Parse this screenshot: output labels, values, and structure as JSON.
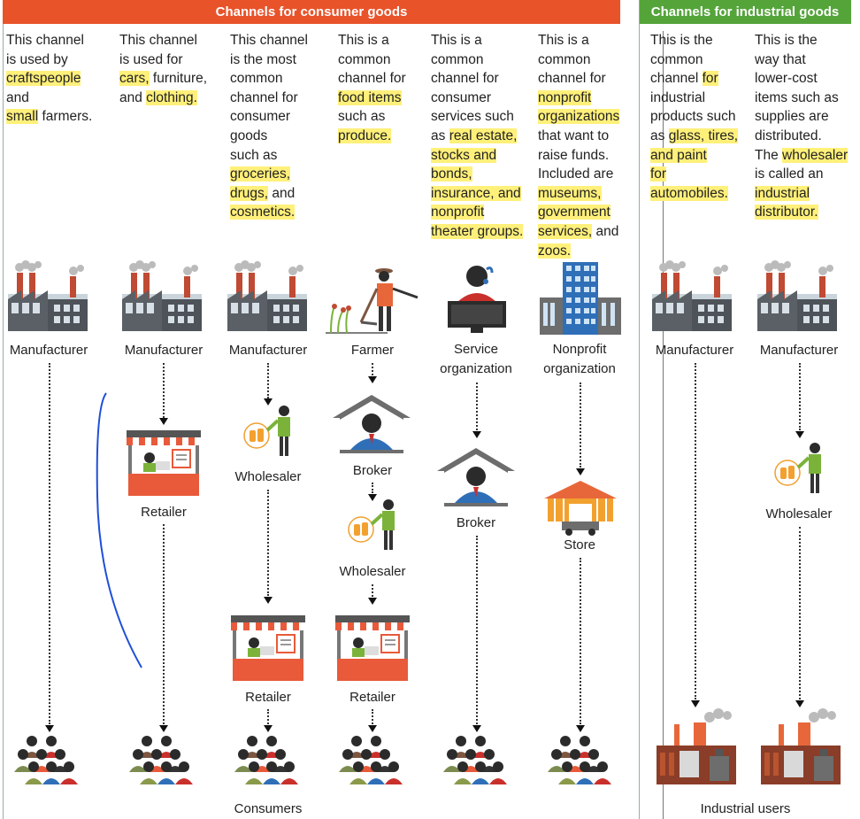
{
  "headers": {
    "consumer": "Channels for consumer goods",
    "industrial": "Channels for industrial goods"
  },
  "descriptions": [
    [
      "This channel",
      "is used by",
      "craftspeople",
      "and",
      "small farmers."
    ],
    [
      "This channel",
      "is used for",
      "cars, furniture,",
      "and clothing."
    ],
    [
      "This channel",
      "is the most",
      "common",
      "channel for",
      "consumer",
      "goods",
      "such as",
      "groceries,",
      "drugs, and",
      "cosmetics."
    ],
    [
      "This is a",
      "common",
      "channel for",
      "food items",
      "such as",
      "produce."
    ],
    [
      "This is a",
      "common",
      "channel for",
      "consumer",
      "services such",
      "as real estate,",
      "stocks and",
      "bonds,",
      "insurance, and",
      "nonprofit",
      "theater groups."
    ],
    [
      "This is a",
      "common",
      "channel for",
      "nonprofit",
      "organizations",
      "that want to",
      "raise funds.",
      "Included are",
      "museums,",
      "government",
      "services, and",
      "zoos."
    ],
    [
      "This is the",
      "common",
      "channel for",
      "industrial",
      "products such",
      "as glass, tires,",
      "and paint",
      "for",
      "automobiles."
    ],
    [
      "This is the",
      "way that",
      "lower-cost",
      "items such as",
      "supplies are",
      "distributed.",
      "The wholesaler",
      "is called an",
      "industrial",
      "distributor."
    ]
  ],
  "labels": {
    "manufacturer": "Manufacturer",
    "retailer": "Retailer",
    "wholesaler": "Wholesaler",
    "farmer": "Farmer",
    "broker": "Broker",
    "service_org_1": "Service",
    "service_org_2": "organization",
    "nonprofit_org_1": "Nonprofit",
    "nonprofit_org_2": "organization",
    "store": "Store",
    "consumers": "Consumers",
    "industrial_users": "Industrial users"
  },
  "colors": {
    "consumer_header": "#e8532a",
    "industrial_header": "#54a43a",
    "highlight": "#fff07a",
    "annotation_ink": "#1e4fd8"
  }
}
